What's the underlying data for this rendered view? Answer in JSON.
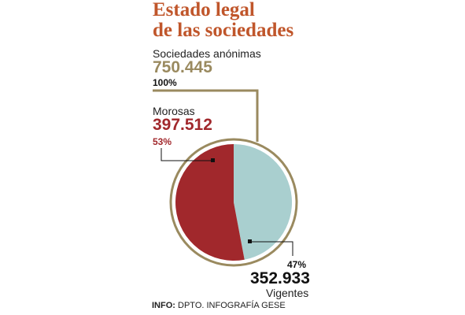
{
  "title": {
    "line1": "Estado legal",
    "line2": "de las sociedades"
  },
  "total": {
    "label": "Sociedades anónimas",
    "value": "750.445",
    "percent": "100%"
  },
  "morosas": {
    "label": "Morosas",
    "value": "397.512",
    "percent": "53%"
  },
  "vigentes": {
    "label": "Vigentes",
    "value": "352.933",
    "percent": "47%"
  },
  "footer": {
    "prefix": "INFO:",
    "text": "DPTO. INFOGRAFÍA GESE"
  },
  "colors": {
    "morosas": "#a1282c",
    "vigentes": "#a9cfcf",
    "gold": "#9a8a5f",
    "title": "#c0562b"
  },
  "chart_data": {
    "type": "pie",
    "slices": [
      {
        "name": "Vigentes",
        "value": 352933,
        "percent": 47,
        "color": "#a9cfcf"
      },
      {
        "name": "Morosas",
        "value": 397512,
        "percent": 53,
        "color": "#a1282c"
      }
    ],
    "total": 750445
  }
}
